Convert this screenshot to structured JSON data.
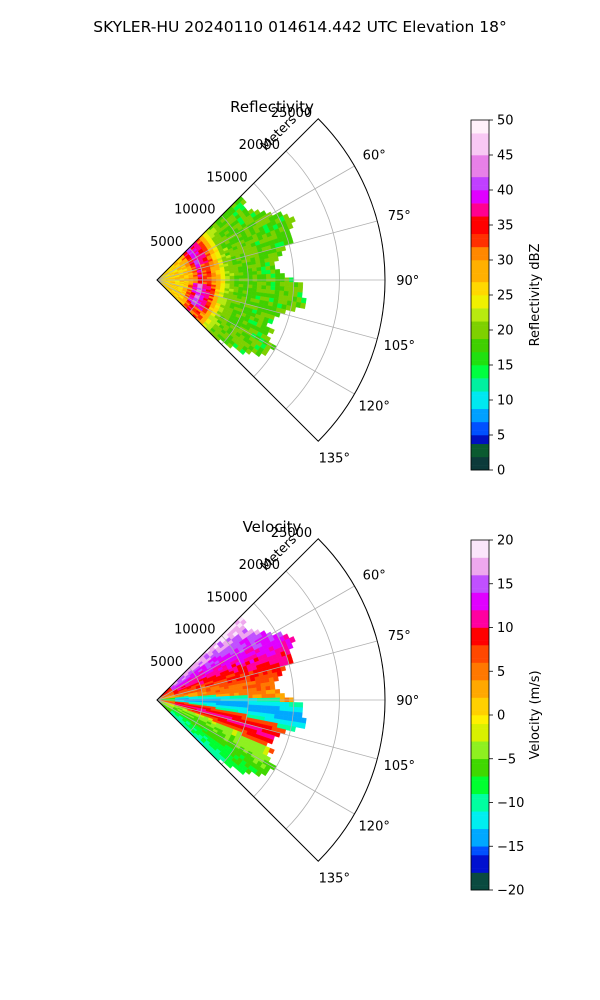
{
  "figure_title": "SKYLER-HU  20240110  014614.442 UTC Elevation 18°",
  "chart_data": [
    {
      "type": "polar-sector",
      "title": "Reflectivity",
      "range_label": "Meters",
      "range_ticks": [
        5000,
        10000,
        15000,
        20000,
        25000
      ],
      "range_tick_labels": [
        "5000",
        "10000",
        "15000",
        "20000",
        "25000"
      ],
      "rlim": [
        0,
        25000
      ],
      "azimuth_ticks": [
        60,
        75,
        90,
        105,
        120,
        135
      ],
      "azimuth_tick_labels": [
        "60°",
        "75°",
        "90°",
        "105°",
        "120°",
        "135°"
      ],
      "theta_lim": [
        45,
        135
      ],
      "grid": true,
      "colorbar": {
        "label": "Reflectivity dBZ",
        "range": [
          0,
          50
        ],
        "ticks": [
          0,
          5,
          10,
          15,
          20,
          25,
          30,
          35,
          40,
          45,
          50
        ],
        "tick_labels": [
          "0",
          "5",
          "10",
          "15",
          "20",
          "25",
          "30",
          "35",
          "40",
          "45",
          "50"
        ],
        "color_stops": [
          [
            0,
            "#0a1a5e"
          ],
          [
            2,
            "#0c3a3a"
          ],
          [
            4,
            "#0a5a30"
          ],
          [
            5,
            "#0010c0"
          ],
          [
            7,
            "#0050ff"
          ],
          [
            9,
            "#00a0ff"
          ],
          [
            11,
            "#00e8f0"
          ],
          [
            13,
            "#00f0a0"
          ],
          [
            15,
            "#00ff40"
          ],
          [
            17,
            "#20e010"
          ],
          [
            19,
            "#40d000"
          ],
          [
            21,
            "#7ed000"
          ],
          [
            23,
            "#b8ea10"
          ],
          [
            25,
            "#f0f000"
          ],
          [
            27,
            "#ffd800"
          ],
          [
            30,
            "#ffb000"
          ],
          [
            32,
            "#ff8800"
          ],
          [
            34,
            "#ff3000"
          ],
          [
            36,
            "#ff0000"
          ],
          [
            38,
            "#ff0090"
          ],
          [
            40,
            "#e000ff"
          ],
          [
            42,
            "#c040ff"
          ],
          [
            45,
            "#e880e8"
          ],
          [
            48,
            "#f8c8f4"
          ],
          [
            50,
            "#fff0fa"
          ]
        ]
      },
      "field": {
        "sector_deg": [
          45,
          135
        ],
        "max_range": 15500,
        "description_values_dbz": {
          "background": 20,
          "near_core": 28,
          "arc_max": 36,
          "inner_band": 42
        }
      }
    },
    {
      "type": "polar-sector",
      "title": "Velocity",
      "range_label": "Meters",
      "range_ticks": [
        5000,
        10000,
        15000,
        20000,
        25000
      ],
      "range_tick_labels": [
        "5000",
        "10000",
        "15000",
        "20000",
        "25000"
      ],
      "rlim": [
        0,
        25000
      ],
      "azimuth_ticks": [
        60,
        75,
        90,
        105,
        120,
        135
      ],
      "azimuth_tick_labels": [
        "60°",
        "75°",
        "90°",
        "105°",
        "120°",
        "135°"
      ],
      "theta_lim": [
        45,
        135
      ],
      "grid": true,
      "colorbar": {
        "label": "Velocity (m/s)",
        "range": [
          -20,
          20
        ],
        "ticks": [
          -20,
          -15,
          -10,
          -5,
          0,
          5,
          10,
          15,
          20
        ],
        "tick_labels": [
          "−20",
          "−15",
          "−10",
          "−5",
          "0",
          "5",
          "10",
          "15",
          "20"
        ],
        "color_stops": [
          [
            -20,
            "#0a1a5e"
          ],
          [
            -18,
            "#0a4a40"
          ],
          [
            -16,
            "#0010d0"
          ],
          [
            -15,
            "#0050ff"
          ],
          [
            -13,
            "#00a8ff"
          ],
          [
            -11,
            "#00eef0"
          ],
          [
            -9,
            "#00ffa0"
          ],
          [
            -7,
            "#00ff30"
          ],
          [
            -5,
            "#40d800"
          ],
          [
            -3,
            "#8ef020"
          ],
          [
            -1,
            "#d8f000"
          ],
          [
            0,
            "#fff000"
          ],
          [
            2,
            "#ffd000"
          ],
          [
            4,
            "#ffa800"
          ],
          [
            6,
            "#ff7800"
          ],
          [
            8,
            "#ff4800"
          ],
          [
            10,
            "#ff0000"
          ],
          [
            12,
            "#ff00a0"
          ],
          [
            14,
            "#e000ff"
          ],
          [
            16,
            "#c050ff"
          ],
          [
            18,
            "#eea8ee"
          ],
          [
            20,
            "#fbe6fb"
          ]
        ]
      },
      "field": {
        "sector_deg": [
          45,
          135
        ],
        "max_range": 15500,
        "description_values_ms": {
          "north": 6,
          "mid_band": -10,
          "south_band": 11,
          "outer_south": -4
        }
      }
    }
  ]
}
